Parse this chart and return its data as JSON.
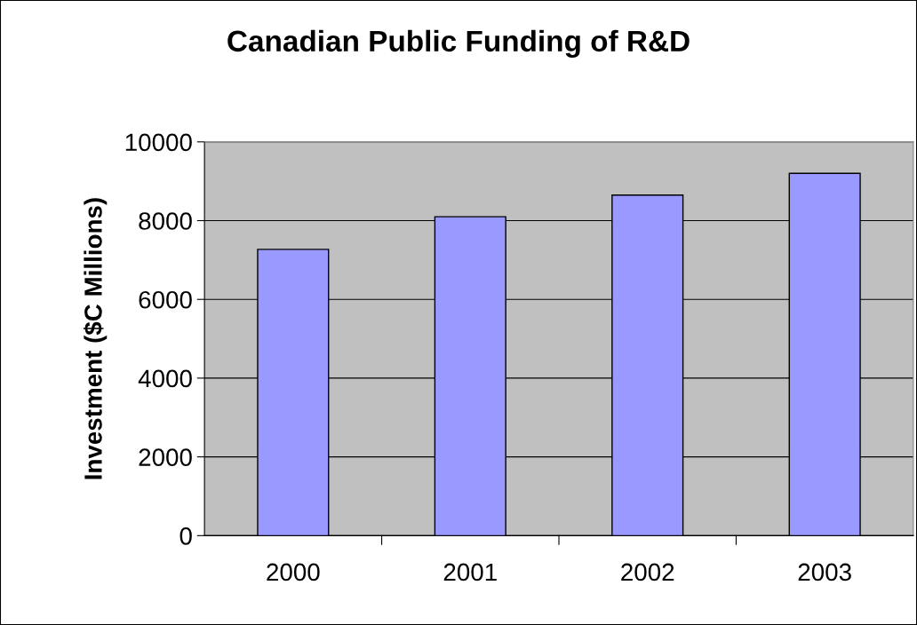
{
  "chart_data": {
    "type": "bar",
    "title": "Canadian Public Funding of R&D",
    "ylabel": "Investment ($C Millions)",
    "categories": [
      "2000",
      "2001",
      "2002",
      "2003"
    ],
    "values": [
      7270,
      8100,
      8650,
      9200
    ],
    "color": "#9999ff",
    "ylim": [
      0,
      10000
    ],
    "yticks": [
      0,
      2000,
      4000,
      6000,
      8000,
      10000
    ],
    "grid": "y",
    "legend": false
  }
}
